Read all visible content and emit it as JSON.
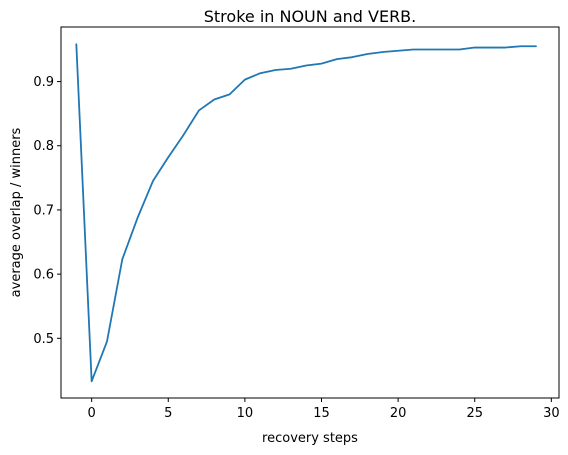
{
  "chart_data": {
    "type": "line",
    "title": "Stroke in NOUN and VERB.",
    "xlabel": "recovery steps",
    "ylabel": "average overlap / winners",
    "xlim": [
      -2,
      30.5
    ],
    "ylim": [
      0.407,
      0.985
    ],
    "xticks": [
      0,
      5,
      10,
      15,
      20,
      25,
      30
    ],
    "yticks": [
      0.5,
      0.6,
      0.7,
      0.8,
      0.9
    ],
    "ytick_labels": [
      "0.5",
      "0.6",
      "0.7",
      "0.8",
      "0.9"
    ],
    "grid": false,
    "series": [
      {
        "color": "#1f77b4",
        "x": [
          -1,
          0,
          1,
          2,
          3,
          4,
          5,
          6,
          7,
          8,
          9,
          10,
          11,
          12,
          13,
          14,
          15,
          16,
          17,
          18,
          19,
          20,
          21,
          22,
          23,
          24,
          25,
          26,
          27,
          28,
          29
        ],
        "y": [
          0.958,
          0.433,
          0.495,
          0.623,
          0.688,
          0.745,
          0.782,
          0.817,
          0.855,
          0.872,
          0.88,
          0.903,
          0.913,
          0.918,
          0.92,
          0.925,
          0.928,
          0.935,
          0.938,
          0.943,
          0.946,
          0.948,
          0.95,
          0.95,
          0.95,
          0.95,
          0.953,
          0.953,
          0.953,
          0.955,
          0.955
        ]
      }
    ]
  }
}
